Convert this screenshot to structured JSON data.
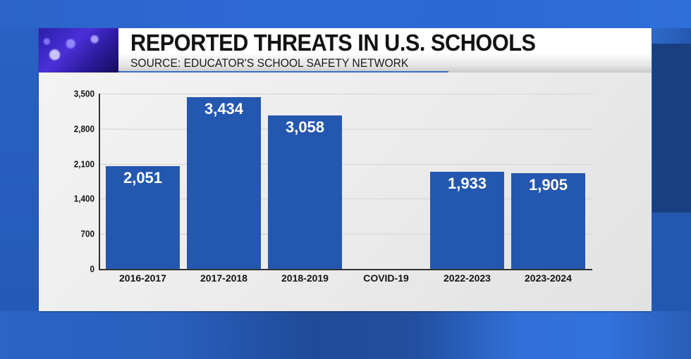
{
  "header": {
    "title": "REPORTED THREATS IN U.S. SCHOOLS",
    "subtitle": "SOURCE: EDUCATOR'S SCHOOL SAFETY NETWORK",
    "thumbnail_icon": "police-lights-thumbnail"
  },
  "colors": {
    "bar": "#2457b0",
    "bar_label": "#ffffff",
    "panel_background": "#ececec",
    "page_background": "#2a5fc0",
    "accent_rule": "#3a6fc4"
  },
  "chart_data": {
    "type": "bar",
    "title": "REPORTED THREATS IN U.S. SCHOOLS",
    "subtitle": "SOURCE: EDUCATOR'S SCHOOL SAFETY NETWORK",
    "categories": [
      "2016-2017",
      "2017-2018",
      "2018-2019",
      "COVID-19",
      "2022-2023",
      "2023-2024"
    ],
    "values": [
      2051,
      3434,
      3058,
      null,
      1933,
      1905
    ],
    "value_labels": [
      "2,051",
      "3,434",
      "3,058",
      "",
      "1,933",
      "1,905"
    ],
    "xlabel": "",
    "ylabel": "",
    "ylim": [
      0,
      3500
    ],
    "yticks": [
      0,
      700,
      1400,
      2100,
      2800,
      3500
    ],
    "ytick_labels": [
      "0",
      "700",
      "1,400",
      "2,100",
      "2,800",
      "3,500"
    ],
    "grid": true,
    "legend": null
  }
}
